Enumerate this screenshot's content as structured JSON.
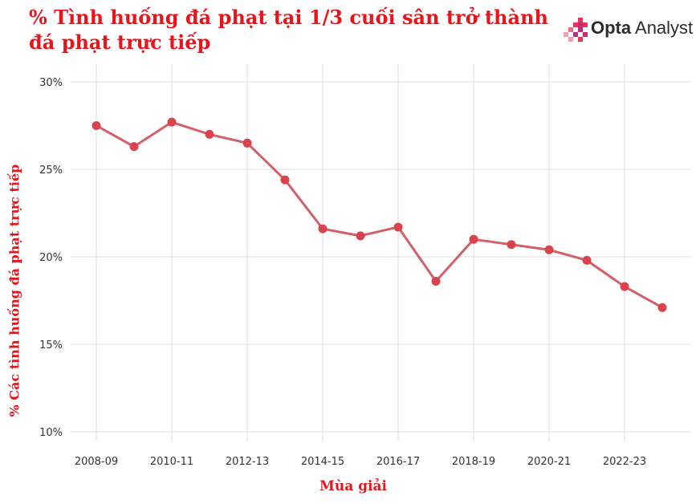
{
  "brand": {
    "name_bold": "Opta",
    "name_rest": " Analyst",
    "icon": "opta-pixel-logo-icon"
  },
  "chart_data": {
    "type": "line",
    "title": "% Tình huống đá phạt tại 1/3 cuối sân trở thành đá phạt trực tiếp",
    "xlabel": "Mùa giải",
    "ylabel": "% Các tình huống đá phạt trực tiếp",
    "ylim": [
      10,
      30
    ],
    "yticks": [
      10,
      15,
      20,
      25,
      30
    ],
    "ytick_labels": [
      "10%",
      "15%",
      "20%",
      "25%",
      "30%"
    ],
    "categories": [
      "2008-09",
      "2009-10",
      "2010-11",
      "2011-12",
      "2012-13",
      "2013-14",
      "2014-15",
      "2015-16",
      "2016-17",
      "2017-18",
      "2018-19",
      "2019-20",
      "2020-21",
      "2021-22",
      "2022-23",
      "2023-24"
    ],
    "xtick_labels": [
      "2008-09",
      "",
      "2010-11",
      "",
      "2012-13",
      "",
      "2014-15",
      "",
      "2016-17",
      "",
      "2018-19",
      "",
      "2020-21",
      "",
      "2022-23",
      ""
    ],
    "series": [
      {
        "values": [
          27.5,
          26.3,
          27.7,
          27.0,
          26.5,
          24.4,
          21.6,
          21.2,
          21.7,
          18.6,
          21.0,
          20.7,
          20.4,
          19.8,
          18.3,
          17.1
        ],
        "color": "#d9434e",
        "line_color": "#d26068"
      }
    ],
    "grid": true,
    "legend": false
  }
}
